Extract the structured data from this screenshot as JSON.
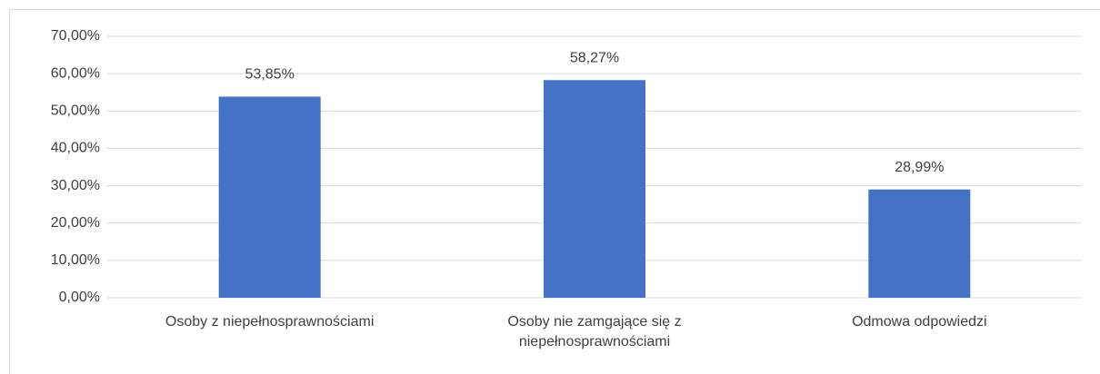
{
  "chart_data": {
    "type": "bar",
    "categories": [
      "Osoby z niepełnosprawnościami",
      "Osoby nie zamgające się z niepełnosprawnościami",
      "Odmowa odpowiedzi"
    ],
    "values": [
      53.85,
      58.27,
      28.99
    ],
    "value_labels": [
      "53,85%",
      "58,27%",
      "28,99%"
    ],
    "color": "#4472c4",
    "ylim": [
      0,
      70
    ],
    "yticks": [
      {
        "value": 0,
        "label": "0,00%"
      },
      {
        "value": 10,
        "label": "10,00%"
      },
      {
        "value": 20,
        "label": "20,00%"
      },
      {
        "value": 30,
        "label": "30,00%"
      },
      {
        "value": 40,
        "label": "40,00%"
      },
      {
        "value": 50,
        "label": "50,00%"
      },
      {
        "value": 60,
        "label": "60,00%"
      },
      {
        "value": 70,
        "label": "70,00%"
      }
    ],
    "grid": true
  }
}
